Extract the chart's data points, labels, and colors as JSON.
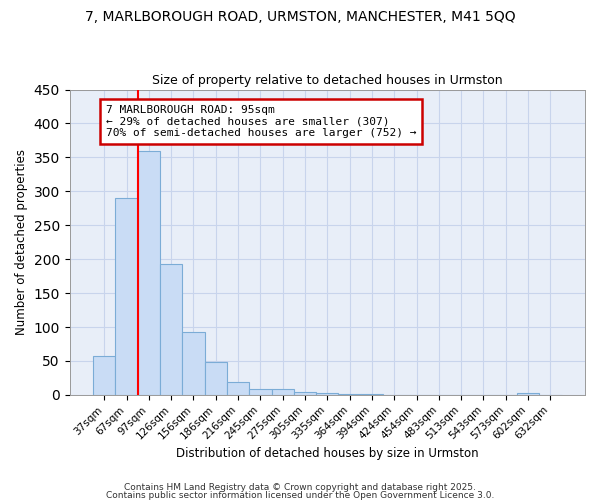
{
  "title_line1": "7, MARLBOROUGH ROAD, URMSTON, MANCHESTER, M41 5QQ",
  "title_line2": "Size of property relative to detached houses in Urmston",
  "xlabel": "Distribution of detached houses by size in Urmston",
  "ylabel": "Number of detached properties",
  "bar_labels": [
    "37sqm",
    "67sqm",
    "97sqm",
    "126sqm",
    "156sqm",
    "186sqm",
    "216sqm",
    "245sqm",
    "275sqm",
    "305sqm",
    "335sqm",
    "364sqm",
    "394sqm",
    "424sqm",
    "454sqm",
    "483sqm",
    "513sqm",
    "543sqm",
    "573sqm",
    "602sqm",
    "632sqm"
  ],
  "bar_values": [
    57,
    290,
    360,
    193,
    92,
    49,
    19,
    8,
    8,
    4,
    3,
    2,
    2,
    0,
    0,
    0,
    0,
    0,
    0,
    3,
    0
  ],
  "bar_color": "#c9dcf5",
  "bar_edge_color": "#7bacd6",
  "red_line_bar_index": 2,
  "annotation_text": "7 MARLBOROUGH ROAD: 95sqm\n← 29% of detached houses are smaller (307)\n70% of semi-detached houses are larger (752) →",
  "annotation_box_facecolor": "#ffffff",
  "annotation_box_edgecolor": "#cc0000",
  "ylim": [
    0,
    450
  ],
  "yticks": [
    0,
    50,
    100,
    150,
    200,
    250,
    300,
    350,
    400,
    450
  ],
  "footer_line1": "Contains HM Land Registry data © Crown copyright and database right 2025.",
  "footer_line2": "Contains public sector information licensed under the Open Government Licence 3.0.",
  "fig_facecolor": "#ffffff",
  "axes_facecolor": "#e8eef8",
  "grid_color": "#c8d4ec",
  "fig_width": 6.0,
  "fig_height": 5.0
}
